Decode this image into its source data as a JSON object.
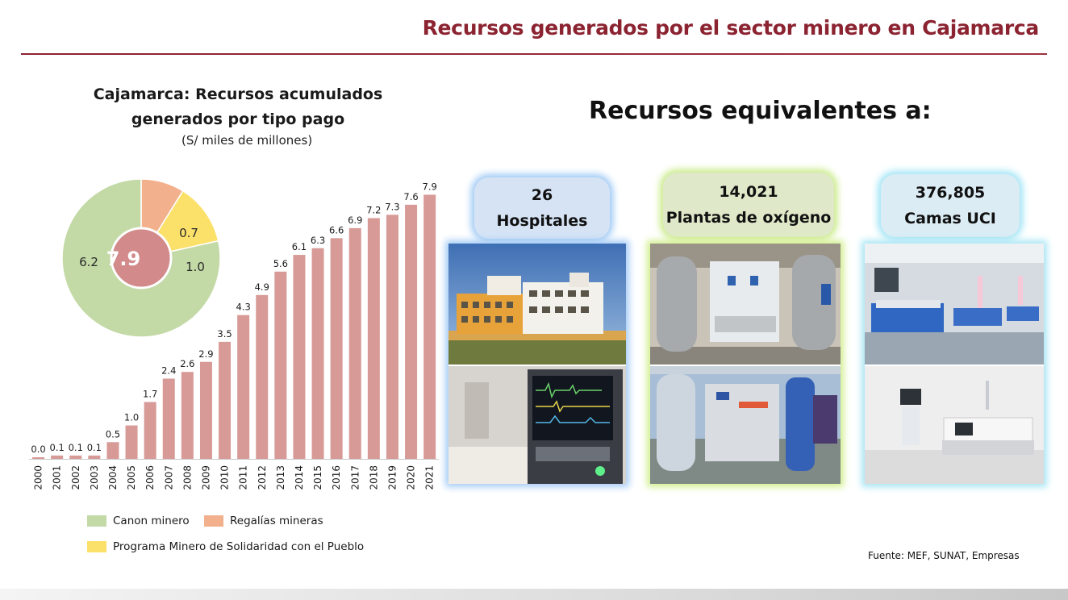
{
  "header": {
    "title": "Recursos generados por el sector minero en Cajamarca"
  },
  "chart_data": [
    {
      "type": "bar",
      "title": "Cajamarca: Recursos acumulados generados por tipo pago",
      "subtitle": "(S/ miles de millones)",
      "categories": [
        "2000",
        "2001",
        "2002",
        "2003",
        "2004",
        "2005",
        "2006",
        "2007",
        "2008",
        "2009",
        "2010",
        "2011",
        "2012",
        "2013",
        "2014",
        "2015",
        "2016",
        "2017",
        "2018",
        "2019",
        "2020",
        "2021"
      ],
      "values": [
        0.0,
        0.1,
        0.1,
        0.1,
        0.5,
        1.0,
        1.7,
        2.4,
        2.6,
        2.9,
        3.5,
        4.3,
        4.9,
        5.6,
        6.1,
        6.3,
        6.6,
        6.9,
        7.2,
        7.3,
        7.6,
        7.9
      ],
      "labels": [
        "0.0",
        "0.1",
        "0.1",
        "0.1",
        "0.5",
        "1.0",
        "1.7",
        "2.4",
        "2.6",
        "2.9",
        "3.5",
        "4.3",
        "4.9",
        "5.6",
        "6.1",
        "6.3",
        "6.6",
        "6.9",
        "7.2",
        "7.3",
        "7.6",
        "7.9"
      ],
      "color": "#d79a97",
      "ylim": [
        0,
        8.2
      ],
      "grid": false
    },
    {
      "type": "pie",
      "style": "donut",
      "center_label": "7.9",
      "slices": [
        {
          "name": "Canon minero",
          "value": 6.2,
          "label": "6.2",
          "color": "#c3d9a6"
        },
        {
          "name": "Regalías mineras",
          "value": 0.7,
          "label": "0.7",
          "color": "#f2b08c"
        },
        {
          "name": "Programa Minero de Solidaridad con el Pueblo",
          "value": 1.0,
          "label": "1.0",
          "color": "#fbe06a"
        }
      ]
    }
  ],
  "legend": {
    "items": [
      {
        "label": "Canon minero",
        "color": "#c3d9a6"
      },
      {
        "label": "Regalías mineras",
        "color": "#f2b08c"
      },
      {
        "label": "Programa Minero de Solidaridad con el Pueblo",
        "color": "#fbe06a"
      }
    ]
  },
  "equivalents": {
    "title": "Recursos equivalentes a:",
    "cards": [
      {
        "number": "26",
        "label": "Hospitales"
      },
      {
        "number": "14,021",
        "label": "Plantas de oxígeno"
      },
      {
        "number": "376,805",
        "label": "Camas UCI"
      }
    ]
  },
  "footnote": "Fuente: MEF, SUNAT, Empresas"
}
